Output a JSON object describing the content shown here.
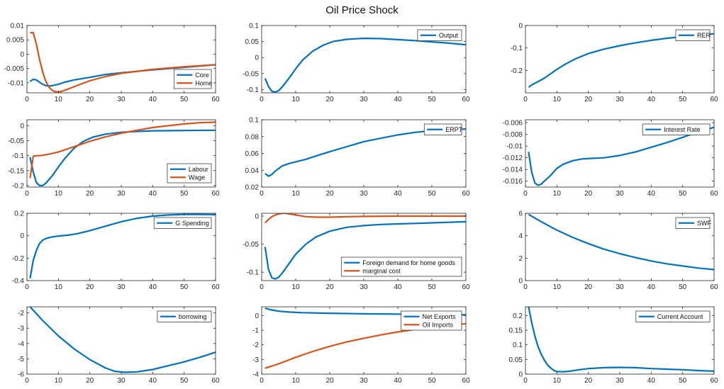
{
  "figure": {
    "title": "Oil Price Shock",
    "colors": {
      "blue": "#0072BD",
      "orange": "#D95319",
      "axis": "#262626"
    }
  },
  "chart_data": [
    {
      "type": "line",
      "title": "",
      "xlim": [
        0,
        60
      ],
      "ylim": [
        -0.0135,
        0.01
      ],
      "xticks": [
        0,
        10,
        20,
        30,
        40,
        50,
        60
      ],
      "yticks": [
        0.01,
        0.005,
        0,
        -0.005,
        -0.01
      ],
      "yticklabels": [
        "0.01",
        "0.005",
        "0",
        "-0.005",
        "-0.01"
      ],
      "legend": "bottom-right",
      "series": [
        {
          "name": "Core",
          "color": "#0072BD",
          "x": [
            1,
            2,
            3,
            4,
            5,
            6,
            7,
            8,
            10,
            12,
            15,
            20,
            25,
            30,
            40,
            50,
            60
          ],
          "y": [
            -0.0095,
            -0.0088,
            -0.009,
            -0.0098,
            -0.0105,
            -0.011,
            -0.0111,
            -0.011,
            -0.0105,
            -0.0098,
            -0.009,
            -0.0081,
            -0.0071,
            -0.0065,
            -0.0055,
            -0.0046,
            -0.0037
          ]
        },
        {
          "name": "Home",
          "color": "#D95319",
          "x": [
            1,
            2,
            3,
            4,
            5,
            6,
            7,
            8,
            9,
            10,
            11,
            12,
            14,
            17,
            20,
            25,
            30,
            40,
            50,
            60
          ],
          "y": [
            0.0075,
            0.0075,
            0.0035,
            -0.0018,
            -0.0062,
            -0.0095,
            -0.0115,
            -0.0126,
            -0.0131,
            -0.0132,
            -0.013,
            -0.0126,
            -0.0118,
            -0.0105,
            -0.0093,
            -0.0078,
            -0.0067,
            -0.0053,
            -0.0044,
            -0.0037
          ]
        }
      ]
    },
    {
      "type": "line",
      "title": "",
      "xlim": [
        0,
        60
      ],
      "ylim": [
        -0.11,
        0.1
      ],
      "xticks": [
        0,
        10,
        20,
        30,
        40,
        50,
        60
      ],
      "yticks": [
        0.1,
        0.05,
        0,
        -0.05,
        -0.1
      ],
      "yticklabels": [
        "0.1",
        "0.05",
        "0",
        "-0.05",
        "-0.1"
      ],
      "legend": "top-right",
      "series": [
        {
          "name": "Output",
          "color": "#0072BD",
          "x": [
            1,
            2,
            3,
            4,
            5,
            6,
            8,
            10,
            12,
            15,
            18,
            21,
            25,
            30,
            35,
            40,
            45,
            50,
            55,
            60
          ],
          "y": [
            -0.065,
            -0.09,
            -0.105,
            -0.108,
            -0.103,
            -0.092,
            -0.065,
            -0.035,
            -0.008,
            0.02,
            0.038,
            0.05,
            0.057,
            0.06,
            0.059,
            0.056,
            0.053,
            0.049,
            0.045,
            0.04
          ]
        }
      ]
    },
    {
      "type": "line",
      "title": "",
      "xlim": [
        0,
        60
      ],
      "ylim": [
        -0.3,
        0
      ],
      "xticks": [
        0,
        10,
        20,
        30,
        40,
        50,
        60
      ],
      "yticks": [
        0,
        -0.1,
        -0.2
      ],
      "yticklabels": [
        "0",
        "-0.1",
        "-0.2"
      ],
      "legend": "top-right",
      "series": [
        {
          "name": "RER",
          "color": "#0072BD",
          "x": [
            1,
            2,
            4,
            6,
            8,
            10,
            13,
            16,
            20,
            25,
            30,
            35,
            40,
            45,
            50,
            55,
            60
          ],
          "y": [
            -0.275,
            -0.265,
            -0.25,
            -0.235,
            -0.215,
            -0.195,
            -0.17,
            -0.148,
            -0.125,
            -0.105,
            -0.09,
            -0.077,
            -0.066,
            -0.057,
            -0.05,
            -0.043,
            -0.037
          ]
        }
      ]
    },
    {
      "type": "line",
      "title": "",
      "xlim": [
        0,
        60
      ],
      "ylim": [
        -0.205,
        0.02
      ],
      "xticks": [
        0,
        10,
        20,
        30,
        40,
        50,
        60
      ],
      "yticks": [
        0,
        -0.05,
        -0.1,
        -0.15,
        -0.2
      ],
      "yticklabels": [
        "0",
        "-0.05",
        "-0.1",
        "-0.15",
        "-0.2"
      ],
      "legend": "bottom-right",
      "series": [
        {
          "name": "Labour",
          "color": "#0072BD",
          "x": [
            1,
            2,
            3,
            4,
            5,
            6,
            8,
            10,
            12,
            15,
            18,
            21,
            25,
            30,
            35,
            40,
            50,
            60
          ],
          "y": [
            -0.105,
            -0.155,
            -0.19,
            -0.2,
            -0.2,
            -0.192,
            -0.168,
            -0.138,
            -0.11,
            -0.075,
            -0.052,
            -0.038,
            -0.028,
            -0.022,
            -0.019,
            -0.017,
            -0.016,
            -0.015
          ]
        },
        {
          "name": "Wage",
          "color": "#D95319",
          "x": [
            1,
            2,
            3,
            4,
            5,
            7,
            10,
            15,
            20,
            25,
            30,
            35,
            40,
            45,
            50,
            55,
            60
          ],
          "y": [
            -0.175,
            -0.102,
            -0.1,
            -0.1,
            -0.099,
            -0.095,
            -0.088,
            -0.07,
            -0.052,
            -0.037,
            -0.025,
            -0.015,
            -0.006,
            0.0,
            0.006,
            0.01,
            0.012
          ]
        }
      ]
    },
    {
      "type": "line",
      "title": "",
      "xlim": [
        0,
        60
      ],
      "ylim": [
        0.02,
        0.1
      ],
      "xticks": [
        0,
        10,
        20,
        30,
        40,
        50,
        60
      ],
      "yticks": [
        0.1,
        0.08,
        0.06,
        0.04,
        0.02
      ],
      "yticklabels": [
        "0.1",
        "0.08",
        "0.06",
        "0.04",
        "0.02"
      ],
      "legend": "top-right",
      "series": [
        {
          "name": "ERPT",
          "color": "#0072BD",
          "x": [
            1,
            2,
            3,
            4,
            5,
            6,
            8,
            10,
            13,
            16,
            20,
            25,
            30,
            35,
            40,
            45,
            50,
            55,
            60
          ],
          "y": [
            0.036,
            0.033,
            0.035,
            0.039,
            0.042,
            0.045,
            0.048,
            0.05,
            0.053,
            0.057,
            0.062,
            0.068,
            0.074,
            0.078,
            0.082,
            0.085,
            0.087,
            0.088,
            0.089
          ]
        }
      ]
    },
    {
      "type": "line",
      "title": "",
      "xlim": [
        0,
        60
      ],
      "ylim": [
        -0.017,
        -0.0055
      ],
      "xticks": [
        0,
        10,
        20,
        30,
        40,
        50,
        60
      ],
      "yticks": [
        -0.006,
        -0.008,
        -0.01,
        -0.012,
        -0.014,
        -0.016
      ],
      "yticklabels": [
        "-0.006",
        "-0.008",
        "-0.01",
        "-0.012",
        "-0.014",
        "-0.016"
      ],
      "legend": "top-right",
      "series": [
        {
          "name": "Interest Rate",
          "color": "#0072BD",
          "x": [
            1,
            2,
            3,
            4,
            5,
            6,
            8,
            10,
            12,
            15,
            18,
            21,
            25,
            30,
            35,
            40,
            45,
            50,
            55,
            60
          ],
          "y": [
            -0.011,
            -0.0145,
            -0.0163,
            -0.0167,
            -0.0165,
            -0.016,
            -0.015,
            -0.0138,
            -0.0131,
            -0.0125,
            -0.0122,
            -0.0121,
            -0.012,
            -0.0116,
            -0.011,
            -0.0102,
            -0.0094,
            -0.0085,
            -0.0076,
            -0.0068
          ]
        }
      ]
    },
    {
      "type": "line",
      "title": "",
      "xlim": [
        0,
        60
      ],
      "ylim": [
        -0.4,
        0.2
      ],
      "xticks": [
        0,
        10,
        20,
        30,
        40,
        50,
        60
      ],
      "yticks": [
        0.2,
        0,
        -0.2,
        -0.4
      ],
      "yticklabels": [
        "0.2",
        "0",
        "-0.2",
        "-0.4"
      ],
      "legend": "top-right",
      "series": [
        {
          "name": "G Spending",
          "color": "#0072BD",
          "x": [
            1,
            2,
            3,
            4,
            5,
            6,
            7,
            8,
            10,
            13,
            16,
            20,
            25,
            30,
            35,
            40,
            45,
            50,
            55,
            60
          ],
          "y": [
            -0.38,
            -0.22,
            -0.13,
            -0.07,
            -0.04,
            -0.025,
            -0.017,
            -0.01,
            -0.003,
            0.005,
            0.018,
            0.045,
            0.085,
            0.125,
            0.155,
            0.175,
            0.185,
            0.19,
            0.19,
            0.188
          ]
        }
      ]
    },
    {
      "type": "line",
      "title": "",
      "xlim": [
        0,
        60
      ],
      "ylim": [
        -0.115,
        0.005
      ],
      "xticks": [
        0,
        10,
        20,
        30,
        40,
        50,
        60
      ],
      "yticks": [
        0,
        -0.05,
        -0.1
      ],
      "yticklabels": [
        "0",
        "-0.05",
        "-0.1"
      ],
      "legend": "bottom-right",
      "series": [
        {
          "name": "Foreign demand for home goods",
          "color": "#0072BD",
          "x": [
            1,
            2,
            3,
            4,
            5,
            6,
            8,
            10,
            13,
            16,
            20,
            25,
            30,
            35,
            40,
            45,
            50,
            55,
            60
          ],
          "y": [
            -0.055,
            -0.095,
            -0.11,
            -0.112,
            -0.109,
            -0.102,
            -0.085,
            -0.068,
            -0.05,
            -0.037,
            -0.027,
            -0.02,
            -0.017,
            -0.015,
            -0.014,
            -0.013,
            -0.012,
            -0.011,
            -0.01
          ]
        },
        {
          "name": "marginal cost",
          "color": "#D95319",
          "x": [
            1,
            2,
            3,
            4,
            5,
            6,
            7,
            8,
            10,
            13,
            16,
            20,
            25,
            30,
            40,
            50,
            60
          ],
          "y": [
            -0.012,
            -0.006,
            -0.001,
            0.002,
            0.004,
            0.005,
            0.005,
            0.004,
            0.002,
            -0.001,
            -0.002,
            -0.002,
            -0.001,
            -0.0005,
            0.0,
            0.0,
            0.0
          ]
        }
      ]
    },
    {
      "type": "line",
      "title": "",
      "xlim": [
        0,
        60
      ],
      "ylim": [
        0,
        6
      ],
      "xticks": [
        0,
        10,
        20,
        30,
        40,
        50,
        60
      ],
      "yticks": [
        6,
        4,
        2,
        0
      ],
      "yticklabels": [
        "6",
        "4",
        "2",
        "0"
      ],
      "legend": "top-right",
      "series": [
        {
          "name": "SWF",
          "color": "#0072BD",
          "x": [
            1,
            5,
            10,
            15,
            20,
            25,
            30,
            35,
            40,
            45,
            50,
            55,
            60
          ],
          "y": [
            5.9,
            5.25,
            4.5,
            3.85,
            3.3,
            2.8,
            2.4,
            2.05,
            1.75,
            1.5,
            1.3,
            1.12,
            0.98
          ]
        }
      ]
    },
    {
      "type": "line",
      "title": "",
      "xlim": [
        0,
        60
      ],
      "ylim": [
        -6,
        -1.6
      ],
      "xticks": [
        0,
        10,
        20,
        30,
        40,
        50,
        60
      ],
      "yticks": [
        -2,
        -3,
        -4,
        -5,
        -6
      ],
      "yticklabels": [
        "-2",
        "-3",
        "-4",
        "-5",
        "-6"
      ],
      "legend": "top-right",
      "series": [
        {
          "name": "borrowing",
          "color": "#0072BD",
          "x": [
            1,
            5,
            10,
            15,
            20,
            25,
            28,
            31,
            35,
            40,
            45,
            50,
            55,
            60
          ],
          "y": [
            -1.6,
            -2.5,
            -3.5,
            -4.35,
            -5.05,
            -5.6,
            -5.82,
            -5.88,
            -5.85,
            -5.7,
            -5.45,
            -5.2,
            -4.9,
            -4.57
          ]
        }
      ]
    },
    {
      "type": "line",
      "title": "",
      "xlim": [
        0,
        60
      ],
      "ylim": [
        -4,
        0.6
      ],
      "xticks": [
        0,
        10,
        20,
        30,
        40,
        50,
        60
      ],
      "yticks": [
        0,
        -1,
        -2,
        -3,
        -4
      ],
      "yticklabels": [
        "0",
        "-1",
        "-2",
        "-3",
        "-4"
      ],
      "legend": "top-right",
      "series": [
        {
          "name": "Net Exports",
          "color": "#0072BD",
          "x": [
            1,
            3,
            5,
            8,
            12,
            20,
            30,
            40,
            50,
            60
          ],
          "y": [
            0.5,
            0.38,
            0.3,
            0.24,
            0.2,
            0.16,
            0.12,
            0.1,
            0.08,
            0.05
          ]
        },
        {
          "name": "Oil Imports",
          "color": "#D95319",
          "x": [
            1,
            5,
            10,
            15,
            20,
            25,
            30,
            35,
            40,
            45,
            50,
            55,
            60
          ],
          "y": [
            -3.6,
            -3.3,
            -2.85,
            -2.45,
            -2.1,
            -1.8,
            -1.55,
            -1.32,
            -1.12,
            -0.95,
            -0.8,
            -0.67,
            -0.55
          ]
        }
      ]
    },
    {
      "type": "line",
      "title": "",
      "xlim": [
        0,
        60
      ],
      "ylim": [
        0,
        0.23
      ],
      "xticks": [
        0,
        10,
        20,
        30,
        40,
        50,
        60
      ],
      "yticks": [
        0.2,
        0.15,
        0.1,
        0.05,
        0
      ],
      "yticklabels": [
        "0.2",
        "0.15",
        "0.1",
        "0.05",
        "0"
      ],
      "legend": "top-right",
      "series": [
        {
          "name": "Current Account",
          "color": "#0072BD",
          "x": [
            1,
            2,
            3,
            4,
            5,
            6,
            7,
            8,
            9,
            10,
            12,
            14,
            17,
            20,
            25,
            30,
            35,
            40,
            45,
            50,
            55,
            60
          ],
          "y": [
            0.23,
            0.175,
            0.13,
            0.095,
            0.068,
            0.048,
            0.032,
            0.021,
            0.013,
            0.009,
            0.008,
            0.01,
            0.015,
            0.019,
            0.022,
            0.023,
            0.022,
            0.019,
            0.017,
            0.015,
            0.012,
            0.01
          ]
        }
      ]
    }
  ]
}
